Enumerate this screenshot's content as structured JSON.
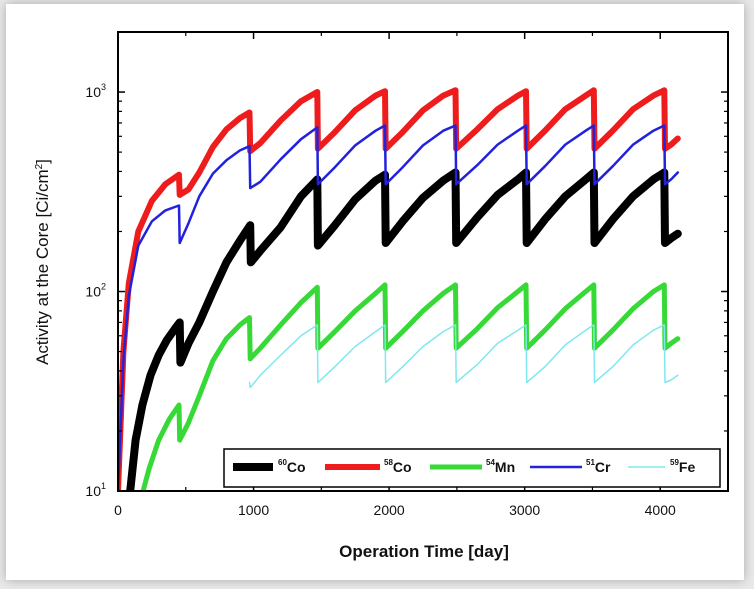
{
  "chart_data": {
    "type": "line",
    "xlabel": "Operation Time [day]",
    "ylabel_main": "Activity at the Core [Ci/cm",
    "ylabel_sup": "2",
    "ylabel_tail": "]",
    "xlim": [
      0,
      4500
    ],
    "ylim": [
      10,
      2000
    ],
    "yscale": "log",
    "xticks": [
      {
        "value": 0,
        "label": "0"
      },
      {
        "value": 1000,
        "label": "1000"
      },
      {
        "value": 2000,
        "label": "2000"
      },
      {
        "value": 3000,
        "label": "3000"
      },
      {
        "value": 4000,
        "label": "4000"
      }
    ],
    "yticks": [
      {
        "value": 10,
        "base": "10",
        "exp": "1"
      },
      {
        "value": 100,
        "base": "10",
        "exp": "2"
      },
      {
        "value": 1000,
        "base": "10",
        "exp": "3"
      }
    ],
    "grid": false,
    "legend_position": "bottom-right",
    "series": [
      {
        "name": "Co",
        "mass": "60",
        "color": "#000000",
        "width": 8,
        "points": [
          [
            90,
            10
          ],
          [
            130,
            18
          ],
          [
            180,
            27
          ],
          [
            240,
            38
          ],
          [
            300,
            48
          ],
          [
            360,
            57
          ],
          [
            420,
            65
          ],
          [
            455,
            70
          ],
          [
            460,
            44
          ],
          [
            520,
            55
          ],
          [
            600,
            70
          ],
          [
            700,
            100
          ],
          [
            800,
            140
          ],
          [
            900,
            180
          ],
          [
            975,
            215
          ],
          [
            980,
            140
          ],
          [
            1050,
            160
          ],
          [
            1200,
            210
          ],
          [
            1350,
            300
          ],
          [
            1470,
            365
          ],
          [
            1475,
            170
          ],
          [
            1600,
            215
          ],
          [
            1750,
            290
          ],
          [
            1900,
            360
          ],
          [
            1970,
            385
          ],
          [
            1975,
            175
          ],
          [
            2100,
            225
          ],
          [
            2250,
            295
          ],
          [
            2400,
            360
          ],
          [
            2490,
            395
          ],
          [
            2495,
            175
          ],
          [
            2650,
            235
          ],
          [
            2800,
            305
          ],
          [
            2950,
            365
          ],
          [
            3010,
            395
          ],
          [
            3015,
            175
          ],
          [
            3150,
            230
          ],
          [
            3300,
            300
          ],
          [
            3450,
            365
          ],
          [
            3510,
            395
          ],
          [
            3515,
            175
          ],
          [
            3650,
            230
          ],
          [
            3800,
            300
          ],
          [
            3950,
            365
          ],
          [
            4030,
            395
          ],
          [
            4035,
            175
          ],
          [
            4080,
            185
          ],
          [
            4130,
            195
          ]
        ]
      },
      {
        "name": "Co",
        "mass": "58",
        "color": "#ee1c1c",
        "width": 6,
        "points": [
          [
            0,
            10
          ],
          [
            40,
            50
          ],
          [
            80,
            110
          ],
          [
            150,
            200
          ],
          [
            250,
            285
          ],
          [
            350,
            345
          ],
          [
            450,
            385
          ],
          [
            455,
            305
          ],
          [
            520,
            325
          ],
          [
            600,
            395
          ],
          [
            700,
            530
          ],
          [
            800,
            650
          ],
          [
            900,
            740
          ],
          [
            970,
            790
          ],
          [
            975,
            505
          ],
          [
            1050,
            555
          ],
          [
            1200,
            720
          ],
          [
            1350,
            900
          ],
          [
            1470,
            1000
          ],
          [
            1475,
            520
          ],
          [
            1600,
            630
          ],
          [
            1750,
            810
          ],
          [
            1900,
            960
          ],
          [
            1970,
            1010
          ],
          [
            1975,
            520
          ],
          [
            2100,
            630
          ],
          [
            2250,
            810
          ],
          [
            2400,
            960
          ],
          [
            2490,
            1020
          ],
          [
            2495,
            520
          ],
          [
            2650,
            650
          ],
          [
            2800,
            820
          ],
          [
            2950,
            960
          ],
          [
            3010,
            1010
          ],
          [
            3015,
            520
          ],
          [
            3150,
            640
          ],
          [
            3300,
            820
          ],
          [
            3450,
            960
          ],
          [
            3510,
            1020
          ],
          [
            3515,
            520
          ],
          [
            3650,
            640
          ],
          [
            3800,
            820
          ],
          [
            3950,
            960
          ],
          [
            4030,
            1020
          ],
          [
            4035,
            520
          ],
          [
            4080,
            545
          ],
          [
            4130,
            585
          ]
        ]
      },
      {
        "name": "Mn",
        "mass": "54",
        "color": "#36d936",
        "width": 5,
        "points": [
          [
            185,
            10
          ],
          [
            230,
            13
          ],
          [
            300,
            18
          ],
          [
            380,
            23
          ],
          [
            450,
            27
          ],
          [
            455,
            18
          ],
          [
            520,
            22
          ],
          [
            600,
            30
          ],
          [
            700,
            45
          ],
          [
            800,
            58
          ],
          [
            900,
            68
          ],
          [
            970,
            74
          ],
          [
            975,
            46
          ],
          [
            1050,
            52
          ],
          [
            1200,
            68
          ],
          [
            1350,
            88
          ],
          [
            1470,
            105
          ],
          [
            1475,
            52
          ],
          [
            1600,
            63
          ],
          [
            1750,
            80
          ],
          [
            1900,
            98
          ],
          [
            1970,
            108
          ],
          [
            1975,
            52
          ],
          [
            2100,
            63
          ],
          [
            2250,
            80
          ],
          [
            2400,
            98
          ],
          [
            2490,
            108
          ],
          [
            2495,
            52
          ],
          [
            2650,
            65
          ],
          [
            2800,
            83
          ],
          [
            2950,
            100
          ],
          [
            3010,
            108
          ],
          [
            3015,
            52
          ],
          [
            3150,
            64
          ],
          [
            3300,
            82
          ],
          [
            3450,
            100
          ],
          [
            3510,
            108
          ],
          [
            3515,
            52
          ],
          [
            3650,
            64
          ],
          [
            3800,
            82
          ],
          [
            3950,
            100
          ],
          [
            4030,
            108
          ],
          [
            4035,
            52
          ],
          [
            4080,
            55
          ],
          [
            4130,
            58
          ]
        ]
      },
      {
        "name": "Cr",
        "mass": "51",
        "color": "#2222dd",
        "width": 2.5,
        "points": [
          [
            0,
            10
          ],
          [
            40,
            45
          ],
          [
            80,
            95
          ],
          [
            150,
            170
          ],
          [
            250,
            225
          ],
          [
            350,
            255
          ],
          [
            450,
            270
          ],
          [
            455,
            175
          ],
          [
            520,
            220
          ],
          [
            600,
            300
          ],
          [
            700,
            390
          ],
          [
            800,
            455
          ],
          [
            900,
            510
          ],
          [
            970,
            535
          ],
          [
            975,
            330
          ],
          [
            1050,
            355
          ],
          [
            1200,
            460
          ],
          [
            1350,
            580
          ],
          [
            1470,
            665
          ],
          [
            1475,
            345
          ],
          [
            1600,
            420
          ],
          [
            1750,
            540
          ],
          [
            1900,
            640
          ],
          [
            1970,
            680
          ],
          [
            1975,
            345
          ],
          [
            2100,
            420
          ],
          [
            2250,
            540
          ],
          [
            2400,
            640
          ],
          [
            2490,
            680
          ],
          [
            2495,
            345
          ],
          [
            2650,
            430
          ],
          [
            2800,
            545
          ],
          [
            2950,
            640
          ],
          [
            3010,
            680
          ],
          [
            3015,
            345
          ],
          [
            3150,
            425
          ],
          [
            3300,
            545
          ],
          [
            3450,
            640
          ],
          [
            3510,
            680
          ],
          [
            3515,
            345
          ],
          [
            3650,
            425
          ],
          [
            3800,
            545
          ],
          [
            3950,
            640
          ],
          [
            4030,
            680
          ],
          [
            4035,
            345
          ],
          [
            4080,
            365
          ],
          [
            4130,
            395
          ]
        ]
      },
      {
        "name": "Fe",
        "mass": "59",
        "color": "#7fe8ee",
        "width": 1.5,
        "points": [
          [
            970,
            35
          ],
          [
            975,
            33
          ],
          [
            1050,
            38
          ],
          [
            1200,
            48
          ],
          [
            1350,
            60
          ],
          [
            1470,
            68
          ],
          [
            1475,
            35
          ],
          [
            1600,
            42
          ],
          [
            1750,
            53
          ],
          [
            1900,
            63
          ],
          [
            1970,
            68
          ],
          [
            1975,
            35
          ],
          [
            2100,
            42
          ],
          [
            2250,
            53
          ],
          [
            2400,
            63
          ],
          [
            2490,
            68
          ],
          [
            2495,
            35
          ],
          [
            2650,
            43
          ],
          [
            2800,
            55
          ],
          [
            2950,
            64
          ],
          [
            3010,
            68
          ],
          [
            3015,
            35
          ],
          [
            3150,
            42
          ],
          [
            3300,
            54
          ],
          [
            3450,
            64
          ],
          [
            3510,
            68
          ],
          [
            3515,
            35
          ],
          [
            3650,
            42
          ],
          [
            3800,
            54
          ],
          [
            3950,
            64
          ],
          [
            4030,
            68
          ],
          [
            4035,
            35
          ],
          [
            4080,
            36
          ],
          [
            4130,
            38
          ]
        ]
      }
    ]
  }
}
